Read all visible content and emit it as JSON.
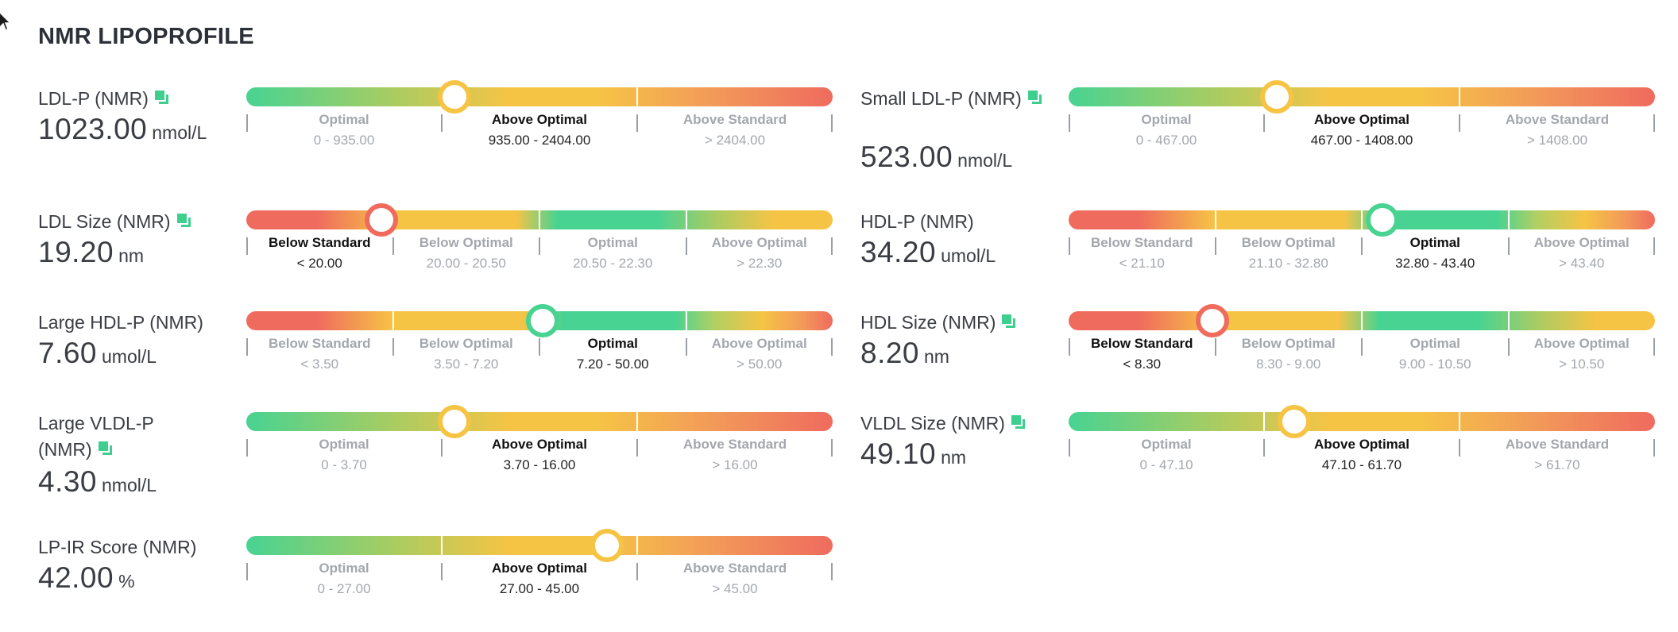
{
  "title": "NMR LIPOPROFILE",
  "colors": {
    "green": "#48d392",
    "yellow": "#f6c445",
    "red": "#ef6b5e",
    "icon": "#3ecf8e"
  },
  "markers": [
    {
      "name": "LDL-P (NMR)",
      "has_icon": true,
      "value": "1023.00",
      "unit": "nmol/L",
      "scale": "green-yellow-red",
      "indicator_fraction": 0.355,
      "segments": [
        {
          "label": "Optimal",
          "range": "0 - 935.00",
          "active": false
        },
        {
          "label": "Above Optimal",
          "range": "935.00 - 2404.00",
          "active": true
        },
        {
          "label": "Above Standard",
          "range": "> 2404.00",
          "active": false
        }
      ]
    },
    {
      "name": "Small LDL-P (NMR)",
      "has_icon": true,
      "value": "523.00",
      "unit": "nmol/L",
      "scale": "green-yellow-red",
      "indicator_fraction": 0.355,
      "segments": [
        {
          "label": "Optimal",
          "range": "0 - 467.00",
          "active": false
        },
        {
          "label": "Above Optimal",
          "range": "467.00 - 1408.00",
          "active": true
        },
        {
          "label": "Above Standard",
          "range": "> 1408.00",
          "active": false
        }
      ]
    },
    {
      "name": "LDL Size (NMR)",
      "has_icon": true,
      "value": "19.20",
      "unit": "nm",
      "scale": "red-yellow-green-yellow",
      "indicator_fraction": 0.23,
      "segments": [
        {
          "label": "Below Standard",
          "range": "< 20.00",
          "active": true
        },
        {
          "label": "Below Optimal",
          "range": "20.00 - 20.50",
          "active": false
        },
        {
          "label": "Optimal",
          "range": "20.50 - 22.30",
          "active": false
        },
        {
          "label": "Above Optimal",
          "range": "> 22.30",
          "active": false
        }
      ]
    },
    {
      "name": "HDL-P (NMR)",
      "has_icon": false,
      "value": "34.20",
      "unit": "umol/L",
      "scale": "red-yellow-green-yellow-red",
      "indicator_fraction": 0.535,
      "segments": [
        {
          "label": "Below Standard",
          "range": "< 21.10",
          "active": false
        },
        {
          "label": "Below Optimal",
          "range": "21.10 - 32.80",
          "active": false
        },
        {
          "label": "Optimal",
          "range": "32.80 - 43.40",
          "active": true
        },
        {
          "label": "Above Optimal",
          "range": "> 43.40",
          "active": false
        }
      ]
    },
    {
      "name": "Large HDL-P (NMR)",
      "has_icon": false,
      "value": "7.60",
      "unit": "umol/L",
      "scale": "red-yellow-green-yellow-red",
      "indicator_fraction": 0.505,
      "segments": [
        {
          "label": "Below Standard",
          "range": "< 3.50",
          "active": false
        },
        {
          "label": "Below Optimal",
          "range": "3.50 - 7.20",
          "active": false
        },
        {
          "label": "Optimal",
          "range": "7.20 - 50.00",
          "active": true
        },
        {
          "label": "Above Optimal",
          "range": "> 50.00",
          "active": false
        }
      ]
    },
    {
      "name": "HDL Size (NMR)",
      "has_icon": true,
      "value": "8.20",
      "unit": "nm",
      "scale": "red-yellow-green-yellow",
      "indicator_fraction": 0.245,
      "segments": [
        {
          "label": "Below Standard",
          "range": "< 8.30",
          "active": true
        },
        {
          "label": "Below Optimal",
          "range": "8.30 - 9.00",
          "active": false
        },
        {
          "label": "Optimal",
          "range": "9.00 - 10.50",
          "active": false
        },
        {
          "label": "Above Optimal",
          "range": "> 10.50",
          "active": false
        }
      ]
    },
    {
      "name": "Large VLDL-P (NMR)",
      "has_icon": true,
      "value": "4.30",
      "unit": "nmol/L",
      "scale": "green-yellow-red",
      "indicator_fraction": 0.355,
      "segments": [
        {
          "label": "Optimal",
          "range": "0 - 3.70",
          "active": false
        },
        {
          "label": "Above Optimal",
          "range": "3.70 - 16.00",
          "active": true
        },
        {
          "label": "Above Standard",
          "range": "> 16.00",
          "active": false
        }
      ]
    },
    {
      "name": "VLDL Size (NMR)",
      "has_icon": true,
      "value": "49.10",
      "unit": "nm",
      "scale": "green-yellow-red",
      "indicator_fraction": 0.385,
      "segments": [
        {
          "label": "Optimal",
          "range": "0 - 47.10",
          "active": false
        },
        {
          "label": "Above Optimal",
          "range": "47.10 - 61.70",
          "active": true
        },
        {
          "label": "Above Standard",
          "range": "> 61.70",
          "active": false
        }
      ]
    },
    {
      "name": "LP-IR Score (NMR)",
      "has_icon": false,
      "value": "42.00",
      "unit": "%",
      "scale": "green-yellow-red",
      "indicator_fraction": 0.615,
      "segments": [
        {
          "label": "Optimal",
          "range": "0 - 27.00",
          "active": false
        },
        {
          "label": "Above Optimal",
          "range": "27.00 - 45.00",
          "active": true
        },
        {
          "label": "Above Standard",
          "range": "> 45.00",
          "active": false
        }
      ]
    }
  ]
}
